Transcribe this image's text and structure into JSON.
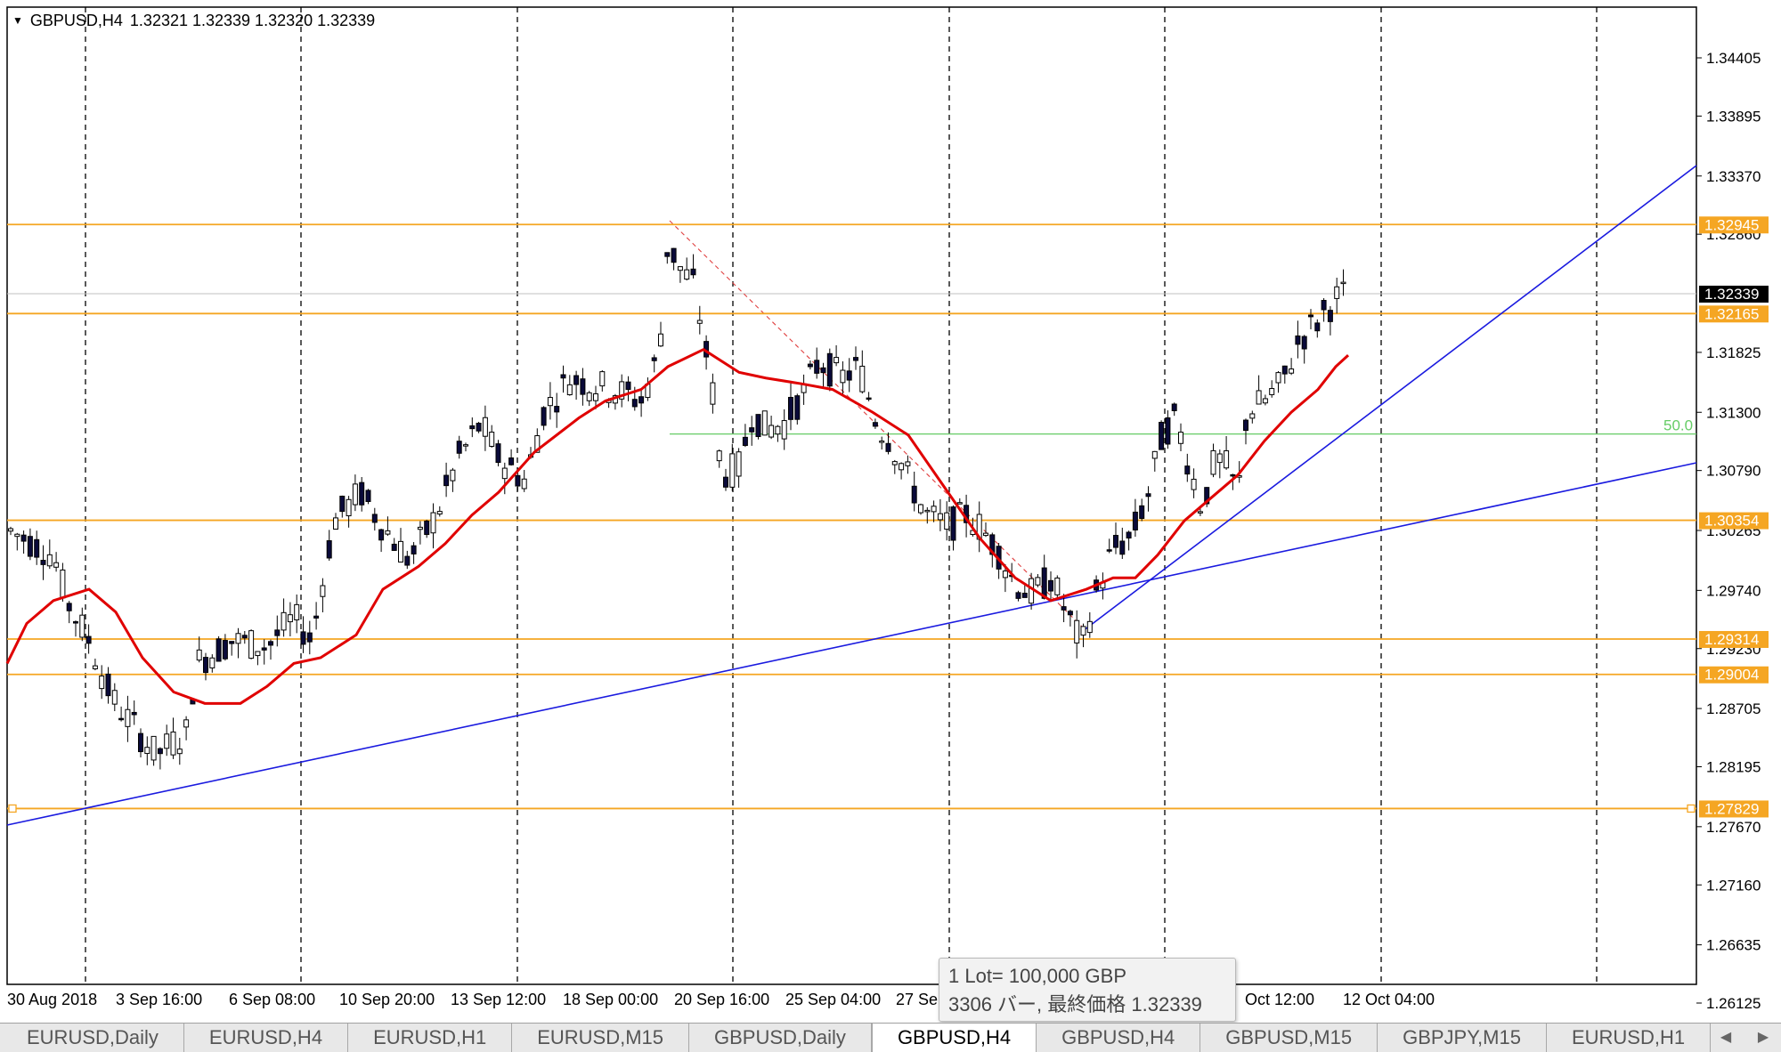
{
  "header": {
    "symbol": "GBPUSD,H4",
    "ohlc": "1.32321 1.32339 1.32320 1.32339"
  },
  "chart_data": {
    "type": "candlestick",
    "symbol": "GBPUSD",
    "timeframe": "H4",
    "price_axis": {
      "ticks": [
        "1.34405",
        "1.33895",
        "1.33370",
        "1.32860",
        "1.31825",
        "1.31300",
        "1.30790",
        "1.30265",
        "1.29740",
        "1.29230",
        "1.28705",
        "1.28195",
        "1.27670",
        "1.27160",
        "1.26635",
        "1.26125"
      ],
      "range": [
        1.26125,
        1.34405
      ]
    },
    "time_axis": {
      "ticks": [
        "30 Aug 2018",
        "3 Sep 16:00",
        "6 Sep 08:00",
        "10 Sep 20:00",
        "13 Sep 12:00",
        "18 Sep 00:00",
        "20 Sep 16:00",
        "25 Sep 04:00",
        "27 Se",
        "Oct 12:00",
        "12 Oct 04:00"
      ]
    },
    "horizontal_levels": [
      {
        "label": "1.32945",
        "price": 1.32945,
        "color": "#f5a623"
      },
      {
        "label": "1.32165",
        "price": 1.32165,
        "color": "#f5a623"
      },
      {
        "label": "1.30354",
        "price": 1.30354,
        "color": "#f5a623"
      },
      {
        "label": "1.29314",
        "price": 1.29314,
        "color": "#f5a623"
      },
      {
        "label": "1.29004",
        "price": 1.29004,
        "color": "#f5a623"
      },
      {
        "label": "1.27829",
        "price": 1.27829,
        "color": "#f5a623"
      }
    ],
    "current_price": {
      "label": "1.32339",
      "price": 1.32339
    },
    "fibo_level": {
      "label": "50.0",
      "price": 1.3111,
      "color": "#66cc66"
    },
    "moving_average": {
      "color": "#e00000"
    },
    "trendlines": {
      "color": "#1a1adf"
    }
  },
  "tooltip": {
    "line1": "1 Lot= 100,000 GBP",
    "line2": "3306 バー, 最終価格 1.32339"
  },
  "tabs": [
    {
      "label": "EURUSD,Daily",
      "active": false
    },
    {
      "label": "EURUSD,H4",
      "active": false
    },
    {
      "label": "EURUSD,H1",
      "active": false
    },
    {
      "label": "EURUSD,M15",
      "active": false
    },
    {
      "label": "GBPUSD,Daily",
      "active": false
    },
    {
      "label": "GBPUSD,H4",
      "active": true
    },
    {
      "label": "GBPUSD,H4",
      "active": false
    },
    {
      "label": "GBPUSD,M15",
      "active": false
    },
    {
      "label": "GBPJPY,M15",
      "active": false
    },
    {
      "label": "EURUSD,H1",
      "active": false
    }
  ]
}
